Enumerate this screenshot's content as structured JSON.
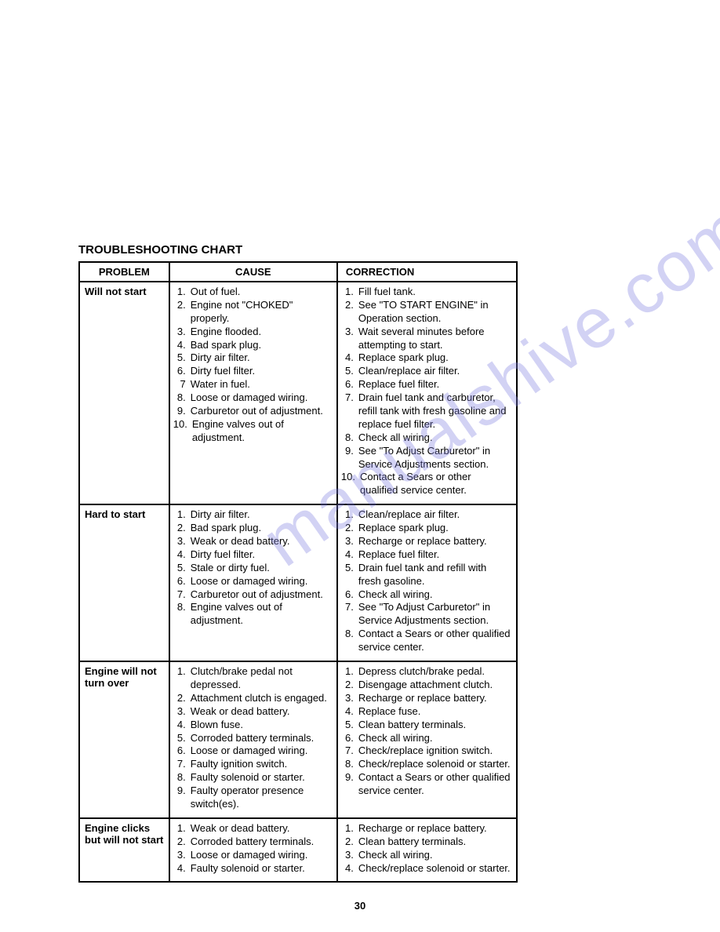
{
  "title": "TROUBLESHOOTING CHART",
  "watermark": "manualshive.com",
  "pageNumber": "30",
  "headers": {
    "problem": "PROBLEM",
    "cause": "CAUSE",
    "correction": "CORRECTION"
  },
  "rows": [
    {
      "problem": "Will not start",
      "causes": [
        "Out of fuel.",
        "Engine not \"CHOKED\" properly.",
        "Engine flooded.",
        "Bad spark plug.",
        "Dirty air filter.",
        "Dirty fuel filter.",
        "Water in fuel.",
        "Loose or damaged wiring.",
        "Carburetor out of adjustment.",
        "Engine valves out of adjustment."
      ],
      "causeNums": [
        "1.",
        "2.",
        "3.",
        "4.",
        "5.",
        "6.",
        "7",
        "8.",
        "9.",
        "10."
      ],
      "corrections": [
        "Fill fuel tank.",
        "See \"TO START ENGINE\" in Operation section.",
        "Wait several minutes before attempting to start.",
        "Replace spark plug.",
        "Clean/replace air filter.",
        "Replace fuel filter.",
        "Drain fuel tank and carburetor, refill tank with fresh gasoline and replace fuel filter.",
        "Check all wiring.",
        "See \"To Adjust Carburetor\" in Service Adjustments section.",
        "Contact a Sears or other qualified service center."
      ],
      "correctionNums": [
        "1.",
        "2.",
        "3.",
        "4.",
        "5.",
        "6.",
        "7.",
        "8.",
        "9.",
        "10."
      ]
    },
    {
      "problem": "Hard to start",
      "causes": [
        "Dirty air filter.",
        "Bad spark plug.",
        "Weak or dead battery.",
        "Dirty fuel filter.",
        "Stale or dirty fuel.",
        "Loose or damaged wiring.",
        "Carburetor out of adjustment.",
        "Engine valves out of adjustment."
      ],
      "causeNums": [
        "1.",
        "2.",
        "3.",
        "4.",
        "5.",
        "6.",
        "7.",
        "8."
      ],
      "corrections": [
        "Clean/replace air filter.",
        "Replace spark plug.",
        "Recharge or replace battery.",
        "Replace fuel filter.",
        "Drain fuel tank and refill with fresh gasoline.",
        "Check all wiring.",
        "See \"To Adjust Carburetor\" in Service Adjustments section.",
        "Contact a Sears or other qualified service center."
      ],
      "correctionNums": [
        "1.",
        "2.",
        "3.",
        "4.",
        "5.",
        "6.",
        "7.",
        "8."
      ]
    },
    {
      "problem": "Engine will not turn over",
      "causes": [
        "Clutch/brake pedal not depressed.",
        "Attachment clutch is engaged.",
        "Weak or dead battery.",
        "Blown fuse.",
        "Corroded battery terminals.",
        "Loose or damaged wiring.",
        "Faulty ignition switch.",
        "Faulty solenoid or starter.",
        "Faulty operator presence switch(es)."
      ],
      "causeNums": [
        "1.",
        "2.",
        "3.",
        "4.",
        "5.",
        "6.",
        "7.",
        "8.",
        "9."
      ],
      "corrections": [
        "Depress clutch/brake pedal.",
        "Disengage attachment clutch.",
        "Recharge or replace battery.",
        "Replace fuse.",
        "Clean battery terminals.",
        "Check all wiring.",
        "Check/replace ignition switch.",
        "Check/replace solenoid or starter.",
        "Contact a Sears or other qualified service center."
      ],
      "correctionNums": [
        "1.",
        "2.",
        "3.",
        "4.",
        "5.",
        "6.",
        "7.",
        "8.",
        "9."
      ]
    },
    {
      "problem": "Engine clicks but will not start",
      "causes": [
        "Weak or dead battery.",
        "Corroded battery terminals.",
        "Loose or damaged wiring.",
        "Faulty solenoid or starter."
      ],
      "causeNums": [
        "1.",
        "2.",
        "3.",
        "4."
      ],
      "corrections": [
        "Recharge or replace battery.",
        "Clean battery terminals.",
        "Check all wiring.",
        "Check/replace solenoid or starter."
      ],
      "correctionNums": [
        "1.",
        "2.",
        "3.",
        "4."
      ]
    }
  ]
}
